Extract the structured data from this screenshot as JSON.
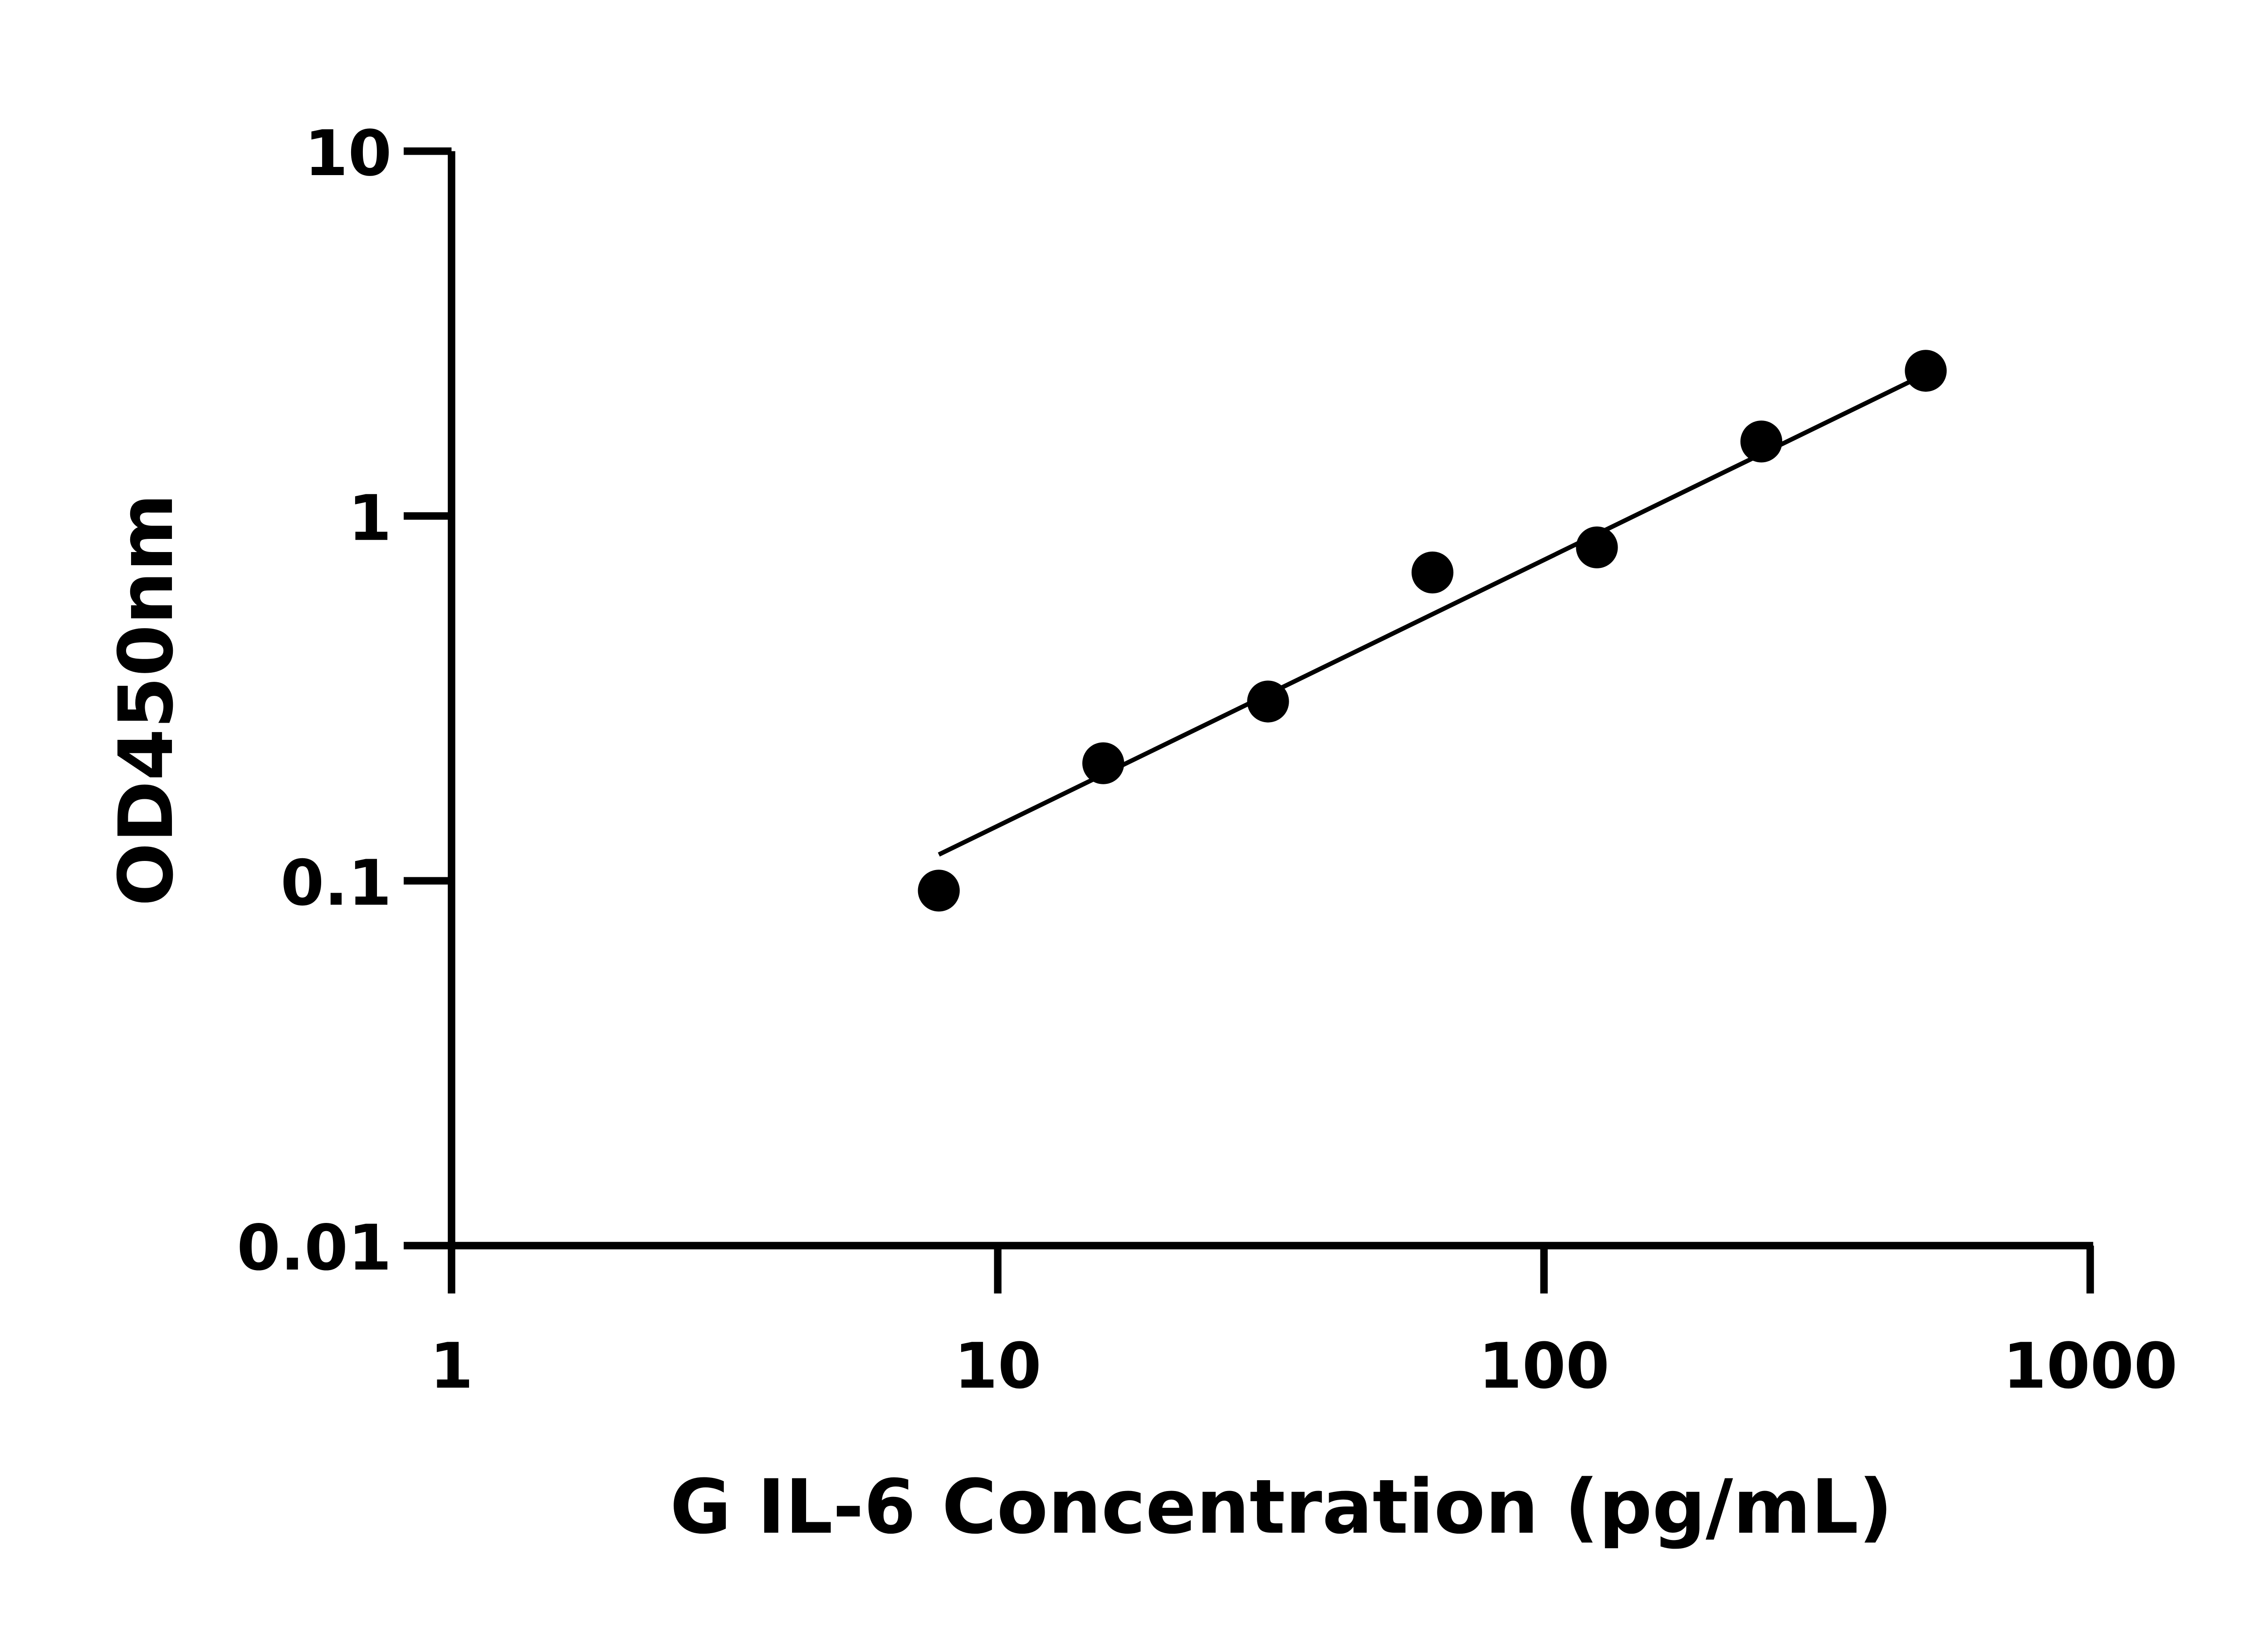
{
  "chart_data": {
    "type": "scatter",
    "title": "",
    "xlabel": "G IL-6 Concentration (pg/mL)",
    "ylabel": "OD450nm",
    "xscale": "log",
    "yscale": "log",
    "xlim": [
      1,
      1000
    ],
    "ylim": [
      0.01,
      10
    ],
    "xticks": [
      "1",
      "10",
      "100",
      "1000"
    ],
    "yticks": [
      "0.01",
      "0.1",
      "1",
      "10"
    ],
    "grid": false,
    "points": [
      {
        "x": 7.8,
        "y": 0.094
      },
      {
        "x": 15.6,
        "y": 0.21
      },
      {
        "x": 31.25,
        "y": 0.31
      },
      {
        "x": 62.5,
        "y": 0.7
      },
      {
        "x": 125,
        "y": 0.82
      },
      {
        "x": 250,
        "y": 1.6
      },
      {
        "x": 500,
        "y": 2.5
      }
    ],
    "fit_line": {
      "x": [
        7.8,
        500
      ],
      "y": [
        0.118,
        2.45
      ]
    },
    "marker_color": "#000000",
    "line_color": "#000000"
  }
}
